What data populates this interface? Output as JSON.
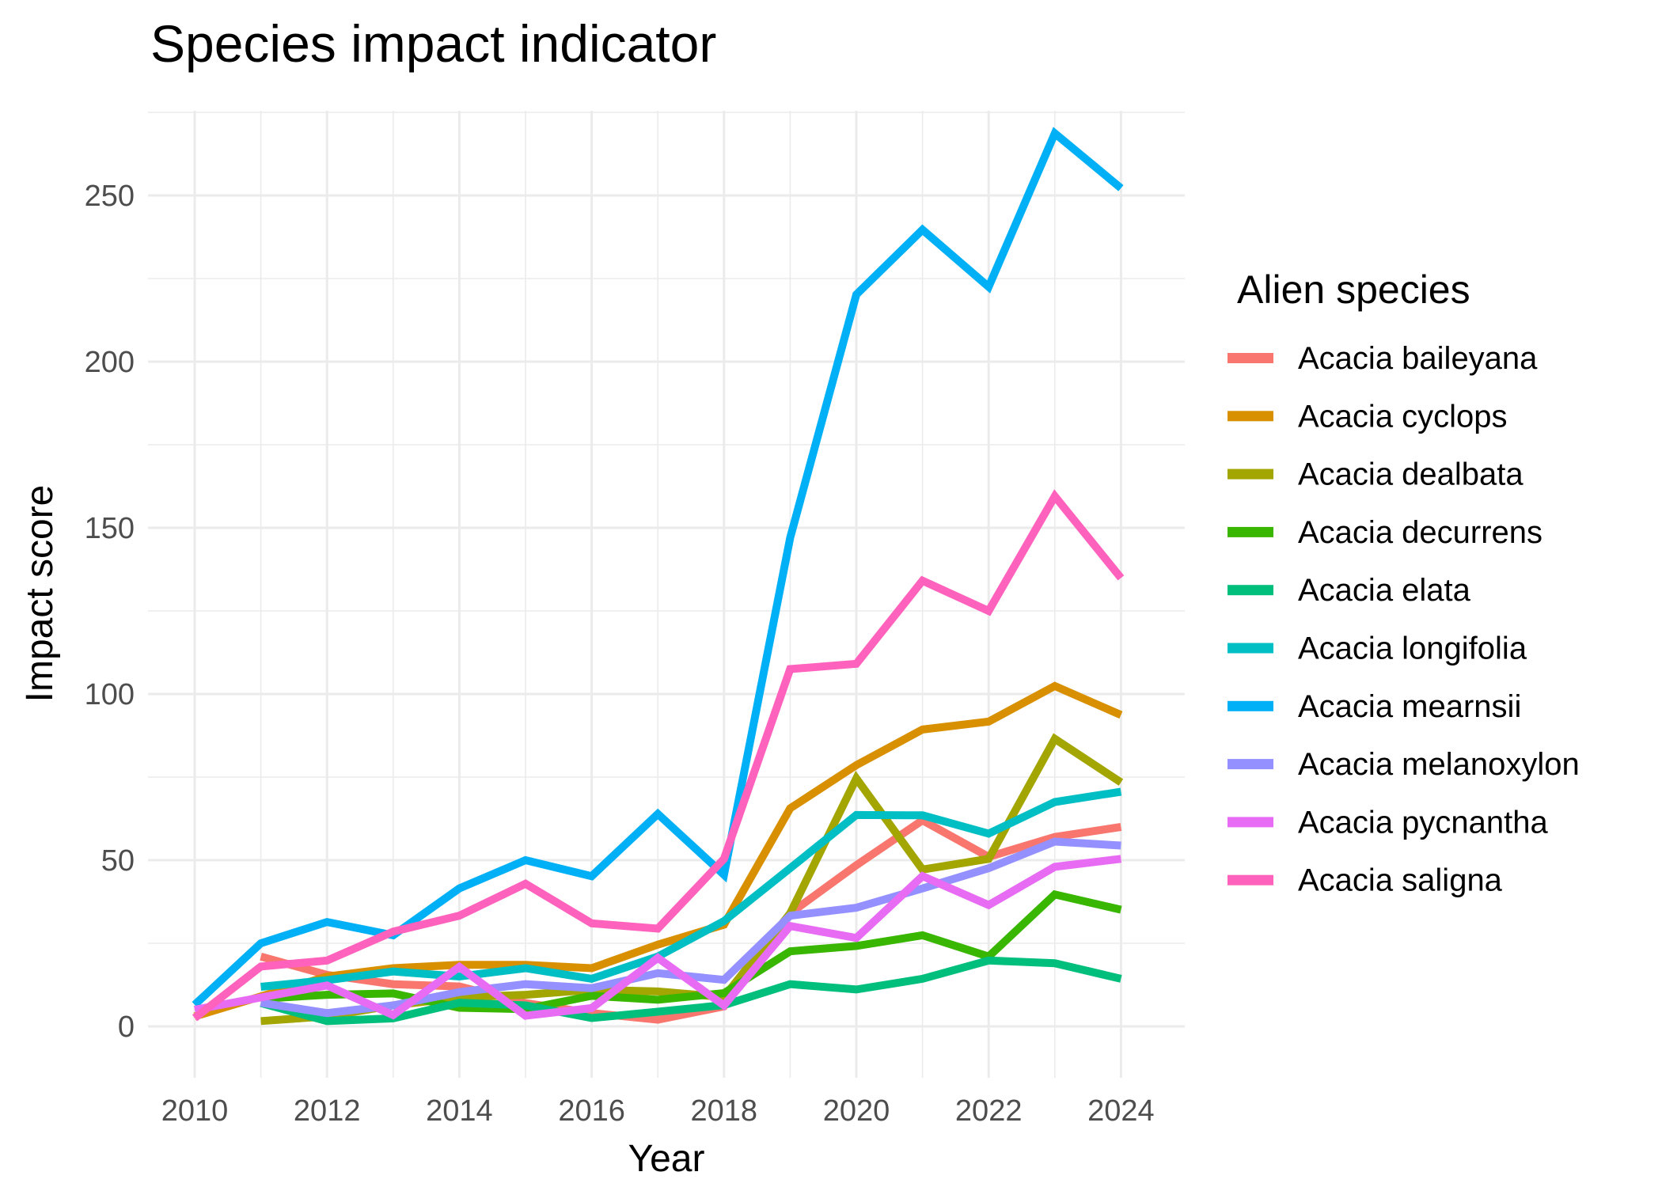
{
  "chart_data": {
    "type": "line",
    "title": "Species impact indicator",
    "xlabel": "Year",
    "ylabel": "Impact score",
    "x": [
      2010,
      2011,
      2012,
      2013,
      2014,
      2015,
      2016,
      2017,
      2018,
      2019,
      2020,
      2021,
      2022,
      2023,
      2024
    ],
    "xlim": [
      2009.3,
      2024.7
    ],
    "ylim": [
      -20,
      285
    ],
    "x_ticks": [
      2010,
      2012,
      2014,
      2016,
      2018,
      2020,
      2022,
      2024
    ],
    "x_tick_labels": [
      "2010",
      "2012",
      "2014",
      "2016",
      "2018",
      "2020",
      "2022",
      "2024"
    ],
    "y_ticks": [
      0,
      50,
      100,
      150,
      200,
      250
    ],
    "y_tick_labels": [
      "0",
      "50",
      "100",
      "150",
      "200",
      "250"
    ],
    "grid": true,
    "legend": {
      "title": "Alien species",
      "position": "right"
    },
    "series": [
      {
        "name": "Acacia baileyana",
        "color": "#F8766D",
        "values": [
          null,
          21,
          15.5,
          12.7,
          12,
          7,
          4,
          2,
          6,
          34,
          48.5,
          62,
          51,
          57,
          60
        ]
      },
      {
        "name": "Acacia cyclops",
        "color": "#D89000",
        "values": [
          3,
          9,
          15,
          17.5,
          18.5,
          18.5,
          17.5,
          24.6,
          30.6,
          65.6,
          78.6,
          89.3,
          91.7,
          102.4,
          93.7
        ]
      },
      {
        "name": "Acacia dealbata",
        "color": "#A3A500",
        "values": [
          null,
          1.6,
          3,
          6.3,
          8.7,
          9.5,
          11,
          10.5,
          8.8,
          34,
          74.6,
          47.2,
          50.4,
          86.5,
          73.4
        ]
      },
      {
        "name": "Acacia decurrens",
        "color": "#39B600",
        "values": [
          null,
          8.3,
          9.5,
          9.9,
          5.6,
          5.2,
          9.2,
          8,
          10,
          22.6,
          24.2,
          27.4,
          21,
          39.7,
          35.1
        ]
      },
      {
        "name": "Acacia elata",
        "color": "#00BF7D",
        "values": [
          null,
          7,
          1.6,
          2.4,
          7.1,
          6.3,
          2.5,
          4.4,
          6.4,
          12.7,
          11.1,
          14.3,
          19.8,
          19,
          14.3
        ]
      },
      {
        "name": "Acacia longifolia",
        "color": "#00BFC4",
        "values": [
          null,
          11.9,
          13.9,
          16.5,
          15,
          17.5,
          14.3,
          21,
          31.7,
          47.6,
          63.6,
          63.5,
          58,
          67.5,
          70.6
        ]
      },
      {
        "name": "Acacia mearnsii",
        "color": "#00B0F6",
        "values": [
          6.5,
          25,
          31.4,
          27.4,
          41.5,
          50,
          45.2,
          63.9,
          45.6,
          147,
          220.2,
          239.7,
          222.5,
          268.7,
          252.2
        ]
      },
      {
        "name": "Acacia melanoxylon",
        "color": "#9590FF",
        "values": [
          null,
          7.1,
          4,
          6.3,
          10.3,
          12.7,
          11.5,
          16,
          14,
          33.3,
          35.7,
          41.5,
          47.6,
          55.6,
          54.4
        ]
      },
      {
        "name": "Acacia pycnantha",
        "color": "#E76BF3",
        "values": [
          5,
          8.7,
          12.3,
          3.4,
          17.9,
          3.2,
          5.5,
          20.6,
          6.3,
          30.2,
          26.6,
          45.2,
          36.5,
          48,
          50.4
        ]
      },
      {
        "name": "Acacia saligna",
        "color": "#FF62BC",
        "values": [
          2.5,
          18,
          19.8,
          28.5,
          33.3,
          42.9,
          31,
          29.4,
          50.4,
          107.5,
          109.1,
          134.1,
          125,
          159.5,
          134.9
        ]
      }
    ]
  }
}
